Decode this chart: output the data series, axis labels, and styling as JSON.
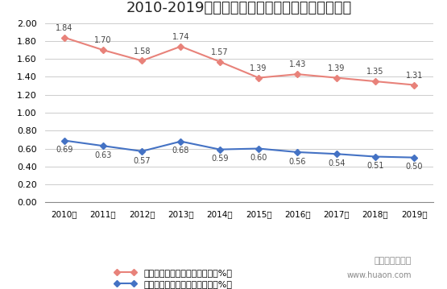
{
  "title": "2010-2019年以色列男性、女性农业就业人员占比",
  "years": [
    "2010年",
    "2011年",
    "2012年",
    "2013年",
    "2014年",
    "2015年",
    "2016年",
    "2017年",
    "2018年",
    "2019年"
  ],
  "male_values": [
    1.84,
    1.7,
    1.58,
    1.74,
    1.57,
    1.39,
    1.43,
    1.39,
    1.35,
    1.31
  ],
  "female_values": [
    0.69,
    0.63,
    0.57,
    0.68,
    0.59,
    0.6,
    0.56,
    0.54,
    0.51,
    0.5
  ],
  "male_label": "以色列农业男性就业人员占比（%）",
  "female_label": "以色列农业女性就业人员占比（%）",
  "male_color": "#E8827A",
  "female_color": "#4472C4",
  "ylim": [
    0.0,
    2.0
  ],
  "yticks": [
    0.0,
    0.2,
    0.4,
    0.6,
    0.8,
    1.0,
    1.2,
    1.4,
    1.6,
    1.8,
    2.0
  ],
  "background_color": "#FFFFFF",
  "watermark": "www.huaon.com",
  "watermark2": "华经产业研究院"
}
